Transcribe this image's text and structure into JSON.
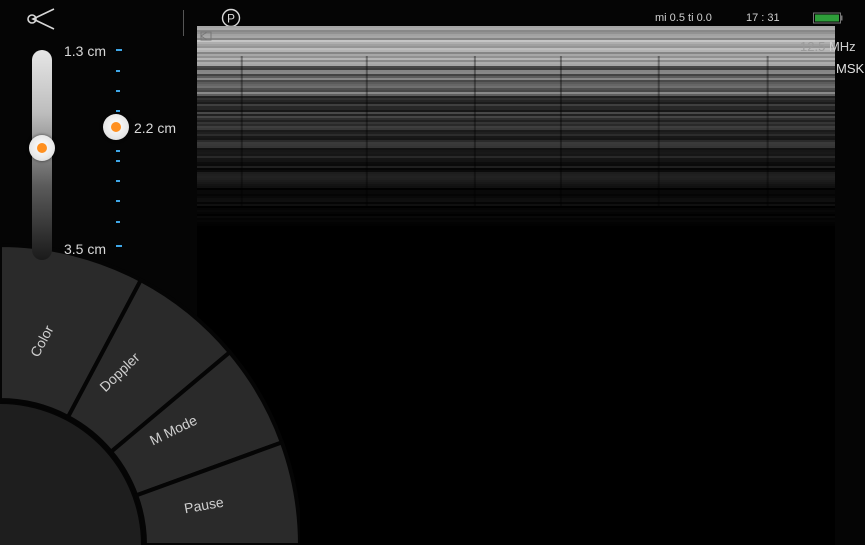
{
  "status_bar": {
    "logo_icon": "probe-logo-icon",
    "power_mark": "P",
    "mi_ti": "mi 0.5 ti 0.0",
    "time": "17 : 31",
    "battery_color": "#2e9e3a"
  },
  "image_info": {
    "frequency_value": "12.5",
    "frequency_unit": "MHz",
    "preset": "MSK"
  },
  "depth": {
    "top_label": "1.3 cm",
    "current_label": "2.2 cm",
    "bottom_label": "3.5 cm"
  },
  "menu": {
    "items": [
      {
        "label": "Color"
      },
      {
        "label": "Doppler"
      },
      {
        "label": "M Mode"
      },
      {
        "label": "Pause"
      }
    ]
  },
  "colors": {
    "accent": "#ff9020",
    "tick": "#3fa7e8",
    "menu_segment": "#2a2a2a"
  }
}
